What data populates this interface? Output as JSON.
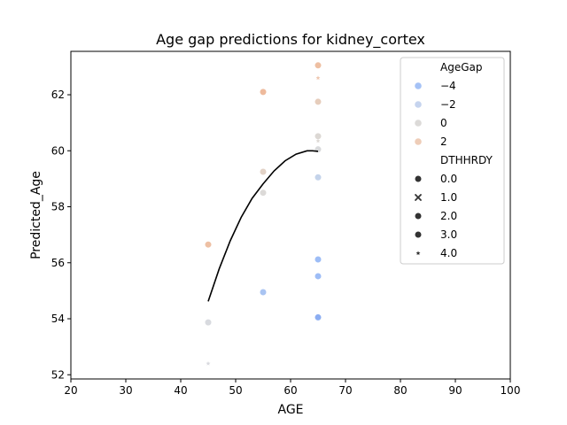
{
  "chart_data": {
    "type": "scatter",
    "title": "Age gap predictions for kidney_cortex",
    "xlabel": "AGE",
    "ylabel": "Predicted_Age",
    "xlim": [
      20,
      100
    ],
    "ylim": [
      51.85,
      63.55
    ],
    "xticks": [
      "20",
      "30",
      "40",
      "50",
      "60",
      "70",
      "80",
      "90",
      "100"
    ],
    "xtick_values": [
      20,
      30,
      40,
      50,
      60,
      70,
      80,
      90,
      100
    ],
    "yticks": [
      "52",
      "54",
      "56",
      "58",
      "60",
      "62"
    ],
    "ytick_values": [
      52,
      54,
      56,
      58,
      60,
      62
    ],
    "grid": false,
    "legend_position": "top-right",
    "legend": {
      "hue_title": "AgeGap",
      "hue_entries": [
        {
          "label": "−4",
          "color": "#a5c2f6"
        },
        {
          "label": "−2",
          "color": "#c6d4ee"
        },
        {
          "label": "0",
          "color": "#dcdad8"
        },
        {
          "label": "2",
          "color": "#eecdb8"
        }
      ],
      "style_title": "DTHHRDY",
      "style_entries": [
        {
          "label": "0.0",
          "marker": "circle"
        },
        {
          "label": "1.0",
          "marker": "x"
        },
        {
          "label": "2.0",
          "marker": "circle"
        },
        {
          "label": "3.0",
          "marker": "circle"
        },
        {
          "label": "4.0",
          "marker": "star"
        }
      ]
    },
    "points": [
      {
        "x": 45,
        "y": 56.65,
        "color": "#eec0a4",
        "marker": "circle"
      },
      {
        "x": 45,
        "y": 53.87,
        "color": "#d8dadf",
        "marker": "circle"
      },
      {
        "x": 45,
        "y": 52.4,
        "color": "#d8d9de",
        "marker": "star"
      },
      {
        "x": 55,
        "y": 62.1,
        "color": "#eeba9c",
        "marker": "circle"
      },
      {
        "x": 55,
        "y": 59.25,
        "color": "#e2d2c6",
        "marker": "circle"
      },
      {
        "x": 55,
        "y": 58.5,
        "color": "#dcdad8",
        "marker": "circle"
      },
      {
        "x": 55,
        "y": 54.95,
        "color": "#a9c4f2",
        "marker": "circle"
      },
      {
        "x": 65,
        "y": 63.05,
        "color": "#eebfa2",
        "marker": "circle"
      },
      {
        "x": 65,
        "y": 62.6,
        "color": "#eec6ae",
        "marker": "star"
      },
      {
        "x": 65,
        "y": 61.75,
        "color": "#e6cdbc",
        "marker": "circle"
      },
      {
        "x": 65,
        "y": 60.52,
        "color": "#dcd8d4",
        "marker": "circle"
      },
      {
        "x": 65,
        "y": 60.35,
        "color": "#dcd8d4",
        "marker": "star"
      },
      {
        "x": 65,
        "y": 60.05,
        "color": "#d8d9db",
        "marker": "circle"
      },
      {
        "x": 65,
        "y": 59.05,
        "color": "#c4d3ea",
        "marker": "circle"
      },
      {
        "x": 65,
        "y": 56.12,
        "color": "#9dbdf6",
        "marker": "circle"
      },
      {
        "x": 65,
        "y": 55.52,
        "color": "#9ebdf6",
        "marker": "circle"
      },
      {
        "x": 65,
        "y": 54.05,
        "color": "#8caef2",
        "marker": "circle"
      }
    ],
    "fit_line": {
      "color": "#000000",
      "x": [
        45,
        47,
        49,
        51,
        53,
        55,
        57,
        59,
        61,
        63,
        64,
        65
      ],
      "y": [
        54.62,
        55.78,
        56.78,
        57.62,
        58.3,
        58.82,
        59.28,
        59.64,
        59.88,
        60.0,
        60.0,
        59.98
      ]
    }
  }
}
